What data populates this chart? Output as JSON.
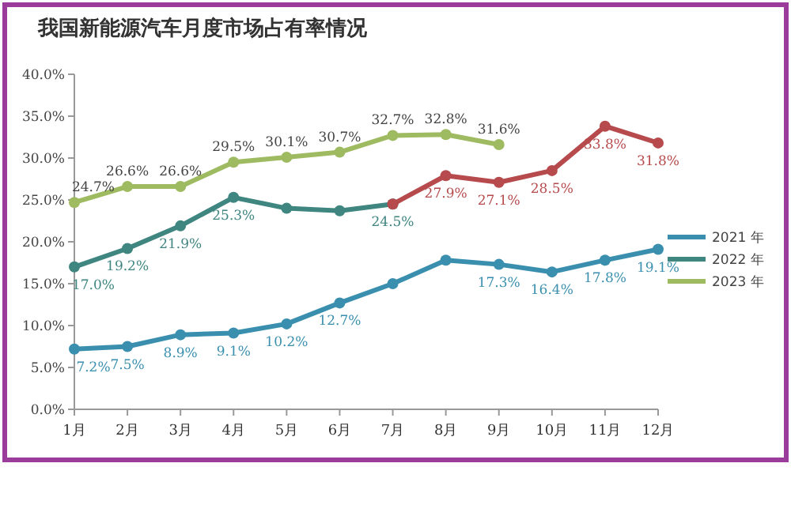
{
  "chart_data": {
    "type": "line",
    "title": "我国新能源汽车月度市场占有率情况",
    "categories": [
      "1月",
      "2月",
      "3月",
      "4月",
      "5月",
      "6月",
      "7月",
      "8月",
      "9月",
      "10月",
      "11月",
      "12月"
    ],
    "ylim": [
      0,
      40
    ],
    "yticks": [
      {
        "value": 0,
        "label": "0.0%"
      },
      {
        "value": 5,
        "label": "5.0%"
      },
      {
        "value": 10,
        "label": "10.0%"
      },
      {
        "value": 15,
        "label": "15.0%"
      },
      {
        "value": 20,
        "label": "20.0%"
      },
      {
        "value": 25,
        "label": "25.0%"
      },
      {
        "value": 30,
        "label": "30.0%"
      },
      {
        "value": 35,
        "label": "35.0%"
      },
      {
        "value": 40,
        "label": "40.0%"
      }
    ],
    "series": [
      {
        "name": "2021 年",
        "color": "#3a8fae",
        "values": [
          7.2,
          7.5,
          8.9,
          9.1,
          10.2,
          12.7,
          15.0,
          17.8,
          17.3,
          16.4,
          17.8,
          19.1
        ],
        "value_labels": [
          "7.2%",
          "7.5%",
          "8.9%",
          "9.1%",
          "10.2%",
          "12.7%",
          null,
          null,
          "17.3%",
          "16.4%",
          "17.8%",
          "19.1%"
        ]
      },
      {
        "name": "2022 年",
        "color": "#3f8580",
        "values": [
          17.0,
          19.2,
          21.9,
          25.3,
          24.0,
          23.7,
          24.5,
          null,
          null,
          null,
          null,
          null
        ],
        "value_labels": [
          "17.0%",
          "19.2%",
          "21.9%",
          "25.3%",
          null,
          null,
          "24.5%",
          null,
          null,
          null,
          null,
          null
        ]
      },
      {
        "color": "#b64a4c",
        "values": [
          null,
          null,
          null,
          null,
          null,
          null,
          24.5,
          27.9,
          27.1,
          28.5,
          33.8,
          31.8
        ],
        "value_labels": [
          null,
          null,
          null,
          null,
          null,
          null,
          null,
          "27.9%",
          "27.1%",
          "28.5%",
          "33.8%",
          "31.8%"
        ]
      },
      {
        "name": "2023 年",
        "color": "#9fbb62",
        "values": [
          24.7,
          26.6,
          26.6,
          29.5,
          30.1,
          30.7,
          32.7,
          32.8,
          31.6,
          null,
          null,
          null
        ],
        "value_labels": [
          "24.7%",
          "26.6%",
          "26.6%",
          "29.5%",
          "30.1%",
          "30.7%",
          "32.7%",
          "32.8%",
          "31.6%",
          null,
          null,
          null
        ]
      }
    ],
    "grid": false,
    "legend": "right",
    "marker": "circle",
    "line_style": "solid"
  }
}
